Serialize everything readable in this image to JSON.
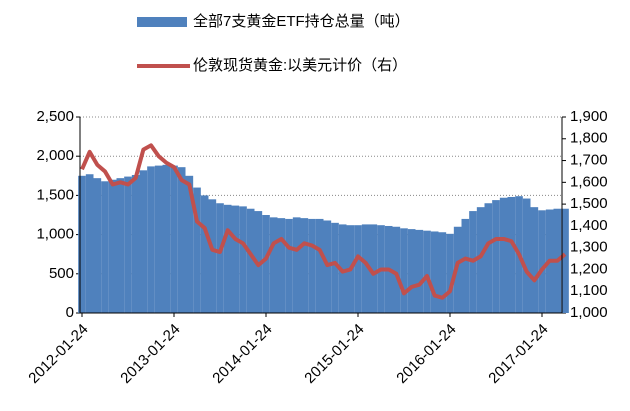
{
  "chart_data": {
    "type": "bar_line",
    "categories": [
      "2012-01-24",
      null,
      null,
      null,
      null,
      null,
      null,
      null,
      null,
      null,
      null,
      null,
      "2013-01-24",
      null,
      null,
      null,
      null,
      null,
      null,
      null,
      null,
      null,
      null,
      null,
      "2014-01-24",
      null,
      null,
      null,
      null,
      null,
      null,
      null,
      null,
      null,
      null,
      null,
      "2015-01-24",
      null,
      null,
      null,
      null,
      null,
      null,
      null,
      null,
      null,
      null,
      null,
      "2016-01-24",
      null,
      null,
      null,
      null,
      null,
      null,
      null,
      null,
      null,
      null,
      null,
      "2017-01-24",
      null,
      null,
      null
    ],
    "series": [
      {
        "name": "全部7支黄金ETF持仓总量（吨）",
        "type": "bar",
        "color": "#4f81bd",
        "values": [
          1750,
          1770,
          1720,
          1680,
          1700,
          1720,
          1740,
          1760,
          1820,
          1870,
          1880,
          1890,
          1880,
          1860,
          1750,
          1600,
          1500,
          1450,
          1400,
          1380,
          1370,
          1360,
          1330,
          1300,
          1250,
          1220,
          1210,
          1200,
          1220,
          1210,
          1200,
          1200,
          1180,
          1150,
          1130,
          1120,
          1120,
          1130,
          1130,
          1120,
          1110,
          1100,
          1080,
          1070,
          1060,
          1050,
          1040,
          1030,
          1010,
          1100,
          1200,
          1300,
          1350,
          1400,
          1440,
          1470,
          1480,
          1490,
          1460,
          1350,
          1310,
          1320,
          1330,
          1330
        ]
      },
      {
        "name": "伦敦现货黄金:以美元计价（右）",
        "type": "line",
        "axis": "y2",
        "color": "#c0504d",
        "values": [
          1660,
          1740,
          1680,
          1650,
          1590,
          1600,
          1590,
          1620,
          1750,
          1770,
          1720,
          1690,
          1670,
          1610,
          1590,
          1420,
          1390,
          1290,
          1280,
          1380,
          1340,
          1320,
          1270,
          1220,
          1250,
          1320,
          1340,
          1300,
          1290,
          1320,
          1310,
          1290,
          1220,
          1230,
          1190,
          1200,
          1260,
          1230,
          1180,
          1200,
          1200,
          1180,
          1090,
          1120,
          1130,
          1170,
          1080,
          1070,
          1100,
          1230,
          1250,
          1240,
          1260,
          1320,
          1340,
          1340,
          1330,
          1270,
          1190,
          1150,
          1200,
          1240,
          1240,
          1270
        ]
      }
    ],
    "ylim": [
      0,
      2500
    ],
    "yticks": [
      0,
      500,
      {
        "value": 1000,
        "label": "1,000"
      },
      {
        "value": 1500,
        "label": "1,500"
      },
      {
        "value": 2000,
        "label": "2,000"
      },
      {
        "value": 2500,
        "label": "2,500"
      }
    ],
    "y2lim": [
      1000,
      1900
    ],
    "y2ticks": [
      {
        "value": 1000,
        "label": "1,000"
      },
      {
        "value": 1100,
        "label": "1,100"
      },
      {
        "value": 1200,
        "label": "1,200"
      },
      {
        "value": 1300,
        "label": "1,300"
      },
      {
        "value": 1400,
        "label": "1,400"
      },
      {
        "value": 1500,
        "label": "1,500"
      },
      {
        "value": 1600,
        "label": "1,600"
      },
      {
        "value": 1700,
        "label": "1,700"
      },
      {
        "value": 1800,
        "label": "1,800"
      },
      {
        "value": 1900,
        "label": "1,900"
      }
    ],
    "grid": true,
    "legend": "top"
  }
}
